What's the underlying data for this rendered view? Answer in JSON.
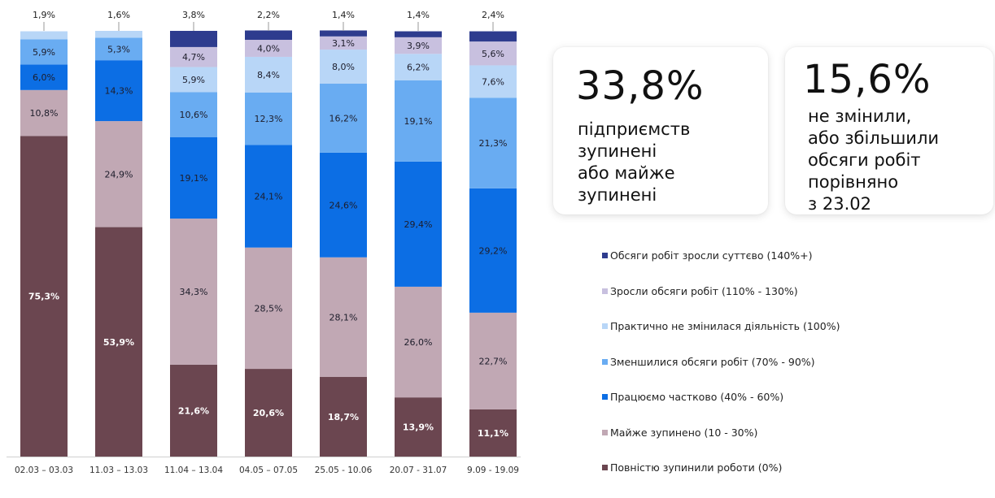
{
  "chart_data": {
    "type": "bar",
    "stacked": true,
    "categories": [
      "02.03 – 03.03",
      "11.03 – 13.03",
      "11.04 – 13.04",
      "04.05 – 07.05",
      "25.05 - 10.06",
      "20.07 - 31.07",
      "9.09 - 19.09"
    ],
    "series": [
      {
        "name": "Повністю зупинили роботи (0%)",
        "color": "#6b4650",
        "values": [
          75.3,
          53.9,
          21.6,
          20.6,
          18.7,
          13.9,
          11.1
        ],
        "labels": [
          "75,3%",
          "53,9%",
          "21,6%",
          "20,6%",
          "18,7%",
          "13,9%",
          "11,1%"
        ]
      },
      {
        "name": "Майже зупинено (10 - 30%)",
        "color": "#c1a8b4",
        "values": [
          10.8,
          24.9,
          34.3,
          28.5,
          28.1,
          26.0,
          22.7
        ],
        "labels": [
          "10,8%",
          "24,9%",
          "34,3%",
          "28,5%",
          "28,1%",
          "26,0%",
          "22,7%"
        ]
      },
      {
        "name": "Працюємо частково (40% - 60%)",
        "color": "#0c6ee4",
        "values": [
          6.0,
          14.3,
          19.1,
          24.1,
          24.6,
          29.4,
          29.2
        ],
        "labels": [
          "6,0%",
          "14,3%",
          "19,1%",
          "24,1%",
          "24,6%",
          "29,4%",
          "29,2%"
        ]
      },
      {
        "name": "Зменшилися обсяги робіт (70% - 90%)",
        "color": "#69acf2",
        "values": [
          5.9,
          5.3,
          10.6,
          12.3,
          16.2,
          19.1,
          21.3
        ],
        "labels": [
          "5,9%",
          "5,3%",
          "10,6%",
          "12,3%",
          "16,2%",
          "19,1%",
          "21,3%"
        ]
      },
      {
        "name": "Практично не змінилася діяльність (100%)",
        "color": "#b8d6f7",
        "values": [
          1.9,
          1.6,
          5.9,
          8.4,
          8.0,
          6.2,
          7.6
        ],
        "labels": [
          "1,9%",
          "1,6%",
          "5,9%",
          "8,4%",
          "8,0%",
          "6,2%",
          "7,6%"
        ]
      },
      {
        "name": "Зросли обсяги робіт (110% - 130%)",
        "color": "#c8c0df",
        "values": [
          0,
          0,
          4.7,
          4.0,
          3.1,
          3.9,
          5.6
        ],
        "labels": [
          "",
          "",
          "4,7%",
          "4,0%",
          "3,1%",
          "3,9%",
          "5,6%"
        ]
      },
      {
        "name": "Обсяги робіт зросли суттєво (140%+)",
        "color": "#2e3c8e",
        "values": [
          0,
          0,
          3.8,
          2.2,
          1.4,
          1.4,
          2.4
        ],
        "labels": [
          "",
          "",
          "3,8%",
          "2,2%",
          "1,4%",
          "1,4%",
          "2,4%"
        ]
      }
    ],
    "outside_top_labels": [
      "1,9%",
      "1,6%",
      "3,8%",
      "2,2%",
      "1,4%",
      "1,4%",
      "2,4%"
    ],
    "ylim": [
      0,
      100
    ],
    "grid": false,
    "legend_position": "right",
    "label_colors": {
      "Повністю зупинили роботи (0%)": "#ffffff"
    }
  },
  "cards": [
    {
      "value": "33,8%",
      "text": "підприємств\nзупинені\nабо майже\nзупинені"
    },
    {
      "value": "15,6%",
      "text": "не змінили,\nабо збільшили\nобсяги робіт\nпорівняно\nз 23.02"
    }
  ]
}
